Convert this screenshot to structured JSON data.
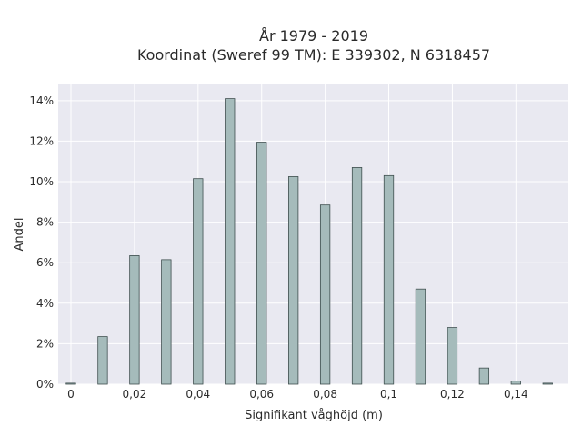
{
  "chart_data": {
    "type": "bar",
    "title_line1": "År 1979 - 2019",
    "title_line2": "Koordinat (Sweref 99 TM): E 339302, N 6318457",
    "xlabel": "Signifikant våghöjd (m)",
    "ylabel": "Andel",
    "x": [
      0,
      0.01,
      0.02,
      0.03,
      0.04,
      0.05,
      0.06,
      0.07,
      0.08,
      0.09,
      0.1,
      0.11,
      0.12,
      0.13,
      0.14,
      0.15
    ],
    "values": [
      0.05,
      2.35,
      6.35,
      6.15,
      10.15,
      14.1,
      11.95,
      10.25,
      8.85,
      10.7,
      10.3,
      4.7,
      2.8,
      0.8,
      0.15,
      0.05
    ],
    "xlim": [
      -0.004,
      0.1565
    ],
    "ylim": [
      0,
      14.8
    ],
    "x_ticks": [
      {
        "value": 0,
        "label": "0"
      },
      {
        "value": 0.02,
        "label": "0,02"
      },
      {
        "value": 0.04,
        "label": "0,04"
      },
      {
        "value": 0.06,
        "label": "0,06"
      },
      {
        "value": 0.08,
        "label": "0,08"
      },
      {
        "value": 0.1,
        "label": "0,1"
      },
      {
        "value": 0.12,
        "label": "0,12"
      },
      {
        "value": 0.14,
        "label": "0,14"
      }
    ],
    "y_ticks": [
      {
        "value": 0,
        "label": "0%"
      },
      {
        "value": 2,
        "label": "2%"
      },
      {
        "value": 4,
        "label": "4%"
      },
      {
        "value": 6,
        "label": "6%"
      },
      {
        "value": 8,
        "label": "8%"
      },
      {
        "value": 10,
        "label": "10%"
      },
      {
        "value": 12,
        "label": "12%"
      },
      {
        "value": 14,
        "label": "14%"
      }
    ],
    "grid": true,
    "colors": {
      "bar_fill": "#a5bbbb",
      "bar_stroke": "#3f4f4f",
      "plot_bg": "#e9e9f1",
      "grid": "#ffffff"
    }
  }
}
